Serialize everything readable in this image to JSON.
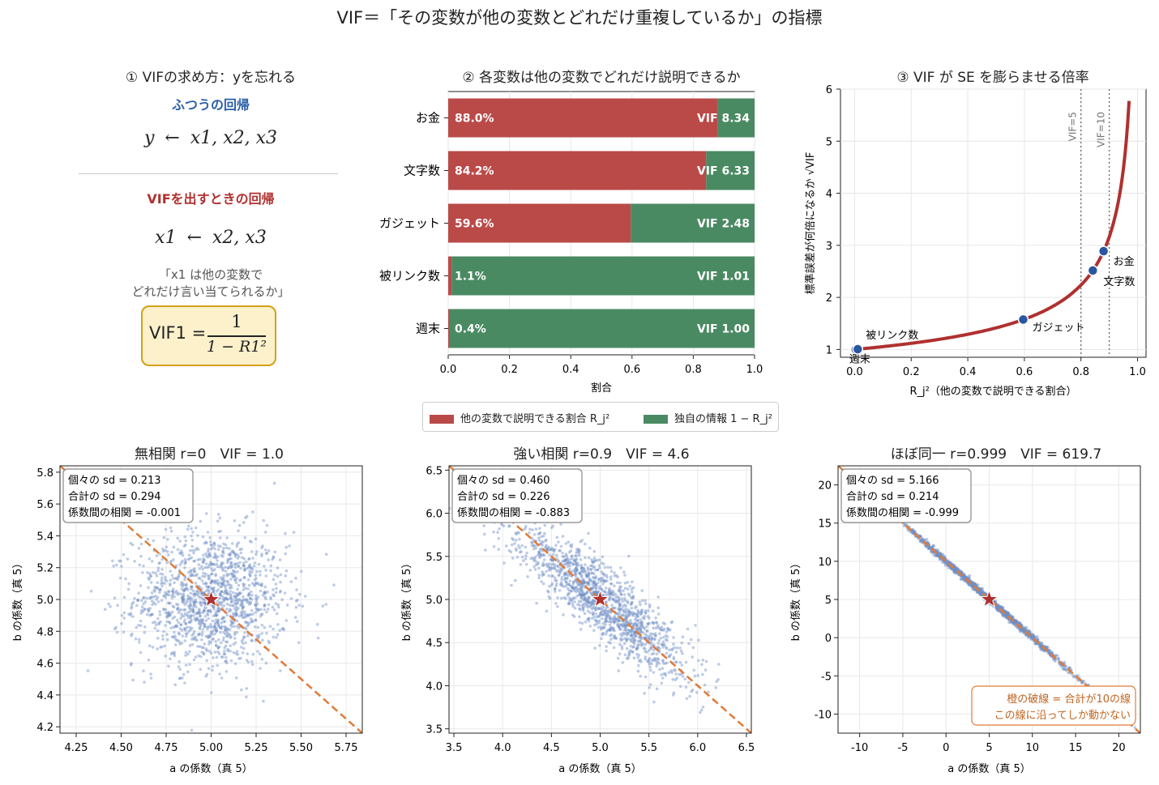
{
  "figure_title": "VIF＝「その変数が他の変数とどれだけ重複しているか」の指標",
  "colors": {
    "red": "#b94a48",
    "green": "#4a8a63",
    "curve": "#b0302f",
    "point": "#2a55a0",
    "scatter": "#6f8fc6",
    "orange": "#e07b39",
    "star": "#b0302f"
  },
  "panel1": {
    "title": "① VIFの求め方：yを忘れる",
    "normal_label": "ふつうの回帰",
    "normal_eq_lhs": "y",
    "normal_eq_arrow": "←",
    "normal_eq_rhs": "x1, x2, x3",
    "vif_label": "VIFを出すときの回帰",
    "vif_eq_lhs": "x1",
    "vif_eq_arrow": "←",
    "vif_eq_rhs": "x2, x3",
    "note_line1": "「x1 は他の変数で",
    "note_line2": "どれだけ言い当てられるか」",
    "formula_lhs": "VIF1 =",
    "formula_num": "1",
    "formula_den": "1 − R1²"
  },
  "chart_data": [
    {
      "type": "bar",
      "title": "② 各変数は他の変数でどれだけ説明できるか",
      "orientation": "horizontal-stacked",
      "categories": [
        "お金",
        "文字数",
        "ガジェット",
        "被リンク数",
        "週末"
      ],
      "series": [
        {
          "name": "他の変数で説明できる割合 R_j²",
          "values": [
            0.88,
            0.842,
            0.596,
            0.011,
            0.004
          ]
        },
        {
          "name": "独自の情報 1 − R_j²",
          "values": [
            0.12,
            0.158,
            0.404,
            0.989,
            0.996
          ]
        }
      ],
      "bar_labels": [
        "88.0%",
        "84.2%",
        "59.6%",
        "1.1%",
        "0.4%"
      ],
      "vif_labels": [
        "VIF 8.34",
        "VIF 6.33",
        "VIF 2.48",
        "VIF 1.01",
        "VIF 1.00"
      ],
      "xlabel": "割合",
      "xlim": [
        0,
        1
      ],
      "xticks": [
        "0.0",
        "0.2",
        "0.4",
        "0.6",
        "0.8",
        "1.0"
      ],
      "legend_position": "bottom"
    },
    {
      "type": "line",
      "title": "③ VIF が SE を膨らませる倍率",
      "xlabel": "R_j²（他の変数で説明できる割合）",
      "ylabel": "標準誤差が何倍になるか √VIF",
      "xlim": [
        -0.05,
        1.03
      ],
      "ylim": [
        0.85,
        6
      ],
      "xticks": [
        "0.0",
        "0.2",
        "0.4",
        "0.6",
        "0.8",
        "1.0"
      ],
      "yticks": [
        "1",
        "2",
        "3",
        "4",
        "5",
        "6"
      ],
      "curve": "y = 1/sqrt(1-x), x from 0 to 0.97",
      "vlines": [
        {
          "x": 0.8,
          "label": "VIF=5"
        },
        {
          "x": 0.9,
          "label": "VIF=10"
        }
      ],
      "points": [
        {
          "name": "週末",
          "x": 0.004,
          "y": 1.0
        },
        {
          "name": "被リンク数",
          "x": 0.011,
          "y": 1.005
        },
        {
          "name": "ガジェット",
          "x": 0.596,
          "y": 1.575
        },
        {
          "name": "文字数",
          "x": 0.842,
          "y": 2.516
        },
        {
          "name": "お金",
          "x": 0.88,
          "y": 2.888
        }
      ]
    },
    {
      "type": "scatter",
      "title": "無相関 r=0　VIF = 1.0",
      "xlabel": "a の係数（真 5）",
      "ylabel": "b の係数（真 5）",
      "xlim": [
        4.16,
        5.84
      ],
      "ylim": [
        4.16,
        5.84
      ],
      "xticks": [
        "4.25",
        "4.50",
        "4.75",
        "5.00",
        "5.25",
        "5.50",
        "5.75"
      ],
      "yticks": [
        "4.2",
        "4.4",
        "4.6",
        "4.8",
        "5.0",
        "5.2",
        "5.4",
        "5.6",
        "5.8"
      ],
      "center": [
        5,
        5
      ],
      "sd_each": 0.213,
      "corr": -0.001,
      "stats": [
        "個々の sd = 0.213",
        "合計の sd = 0.294",
        "係数間の相関 = -0.001"
      ],
      "dashed_line": "a + b = 10"
    },
    {
      "type": "scatter",
      "title": "強い相関 r=0.9　VIF = 4.6",
      "xlabel": "a の係数（真 5）",
      "ylabel": "b の係数（真 5）",
      "xlim": [
        3.45,
        6.55
      ],
      "ylim": [
        3.45,
        6.55
      ],
      "xticks": [
        "3.5",
        "4.0",
        "4.5",
        "5.0",
        "5.5",
        "6.0",
        "6.5"
      ],
      "yticks": [
        "3.5",
        "4.0",
        "4.5",
        "5.0",
        "5.5",
        "6.0",
        "6.5"
      ],
      "center": [
        5,
        5
      ],
      "sd_each": 0.46,
      "corr": -0.883,
      "stats": [
        "個々の sd = 0.460",
        "合計の sd = 0.226",
        "係数間の相関 = -0.883"
      ],
      "dashed_line": "a + b = 10"
    },
    {
      "type": "scatter",
      "title": "ほぼ同一 r=0.999　VIF = 619.7",
      "xlabel": "a の係数（真 5）",
      "ylabel": "b の係数（真 5）",
      "xlim": [
        -12.5,
        22.5
      ],
      "ylim": [
        -12.5,
        22.5
      ],
      "xticks": [
        "-10",
        "-5",
        "0",
        "5",
        "10",
        "15",
        "20"
      ],
      "yticks": [
        "-10",
        "-5",
        "0",
        "5",
        "10",
        "15",
        "20"
      ],
      "center": [
        5,
        5
      ],
      "sd_each": 5.166,
      "corr": -0.999,
      "stats": [
        "個々の sd = 5.166",
        "合計の sd = 0.214",
        "係数間の相関 = -0.999"
      ],
      "dashed_line": "a + b = 10",
      "note_line1": "橙の破線 = 合計が10の線",
      "note_line2": "この線に沿ってしか動かない"
    }
  ]
}
